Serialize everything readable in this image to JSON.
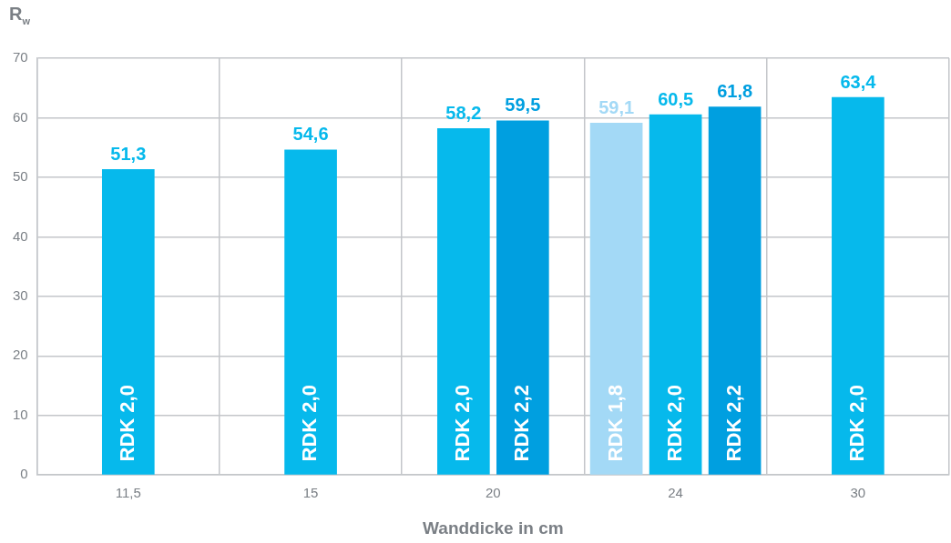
{
  "chart_data": {
    "type": "bar",
    "xlabel": "Wanddicke in cm",
    "ylabel": "R$_{w}$",
    "categories": [
      "11,5",
      "15",
      "20",
      "24",
      "30"
    ],
    "series": [
      {
        "name": "RDK 1,8",
        "color": "#a3d9f6",
        "values": [
          null,
          null,
          null,
          59.1,
          null
        ],
        "value_labels": [
          null,
          null,
          null,
          "59,1",
          null
        ]
      },
      {
        "name": "RDK 2,0",
        "color": "#06b9ec",
        "values": [
          51.3,
          54.6,
          58.2,
          60.5,
          63.4
        ],
        "value_labels": [
          "51,3",
          "54,6",
          "58,2",
          "60,5",
          "63,4"
        ]
      },
      {
        "name": "RDK 2,2",
        "color": "#009fe0",
        "values": [
          null,
          null,
          59.5,
          61.8,
          null
        ],
        "value_labels": [
          null,
          null,
          "59,5",
          "61,8",
          null
        ]
      }
    ],
    "ylim": [
      0,
      70
    ],
    "yticks": [
      0,
      10,
      20,
      30,
      40,
      50,
      60,
      70
    ],
    "grid": true,
    "legend": false
  }
}
